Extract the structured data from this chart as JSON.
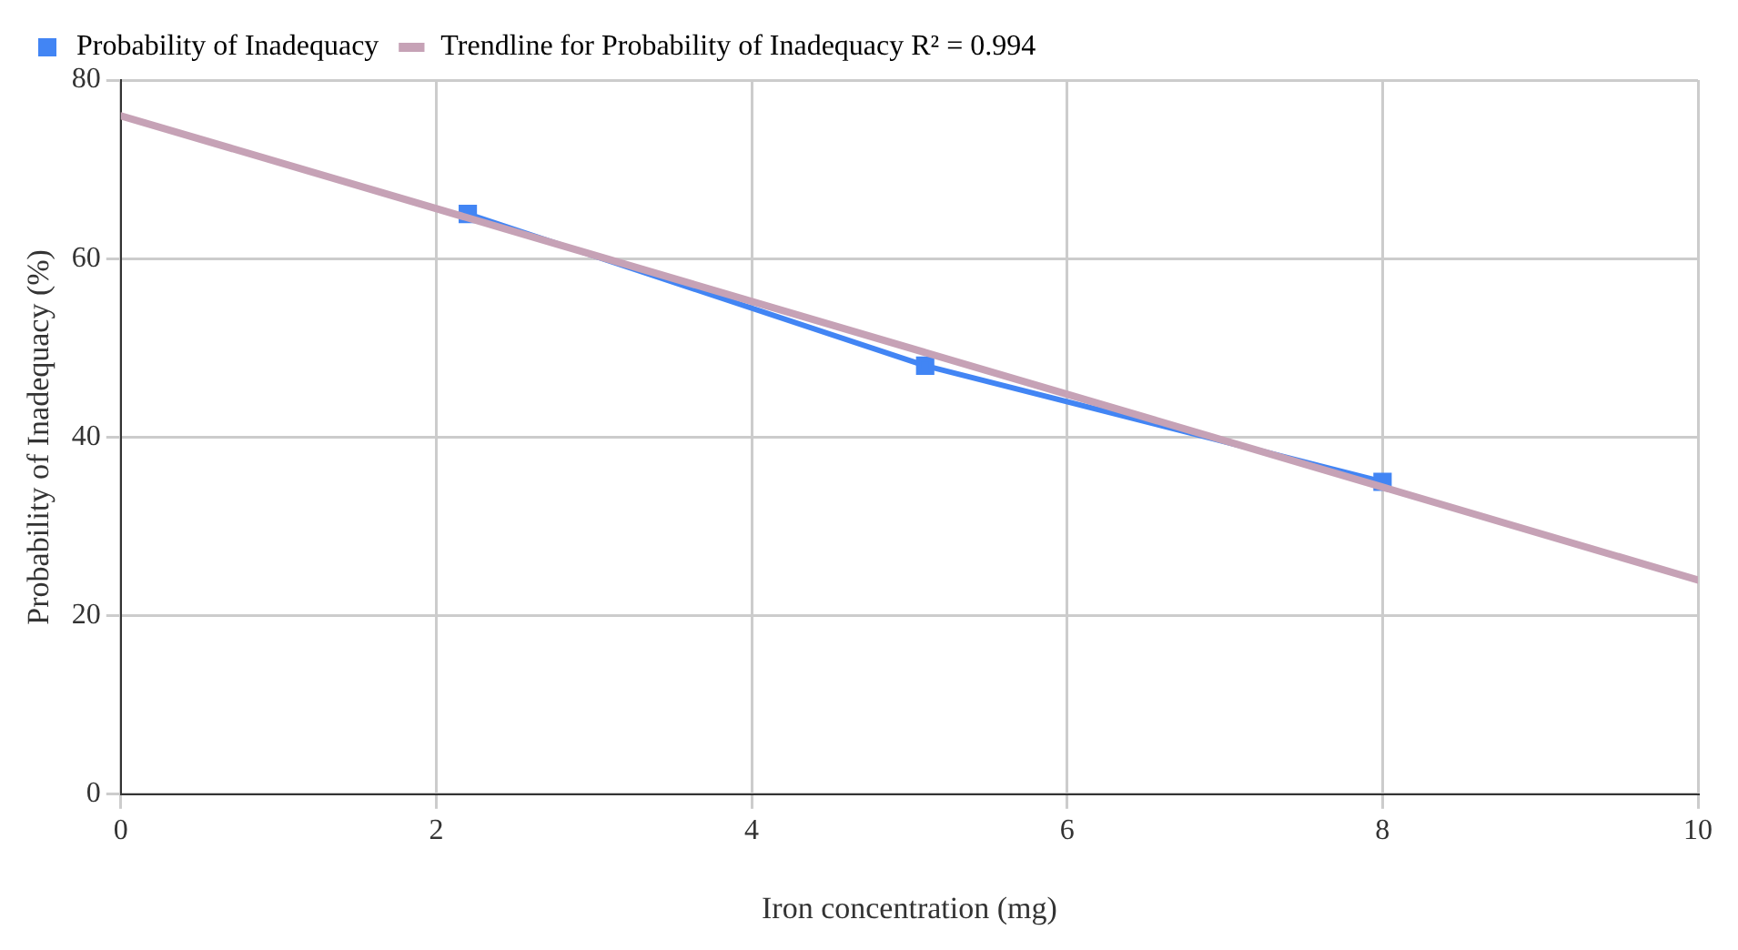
{
  "chart_data": {
    "type": "line",
    "xlabel": "Iron concentration (mg)",
    "ylabel": "Probability of Inadequacy (%)",
    "xlim": [
      0,
      10
    ],
    "xticks": [
      0,
      2,
      4,
      6,
      8,
      10
    ],
    "ylim": [
      0,
      80
    ],
    "yticks": [
      0,
      20,
      40,
      60,
      80
    ],
    "grid": true,
    "legend": "top left",
    "marker": "square",
    "line_style": "solid",
    "series": [
      {
        "name": "Probability of Inadequacy",
        "color": "#4285f4",
        "x": [
          2.2,
          5.1,
          8
        ],
        "values": [
          65,
          48,
          35
        ]
      },
      {
        "name": "Trendline for Probability of Inadequacy R² = 0.994",
        "color": "#c6a2b6",
        "x": [
          0,
          10
        ],
        "values": [
          76,
          24
        ],
        "marker": "none"
      }
    ]
  }
}
